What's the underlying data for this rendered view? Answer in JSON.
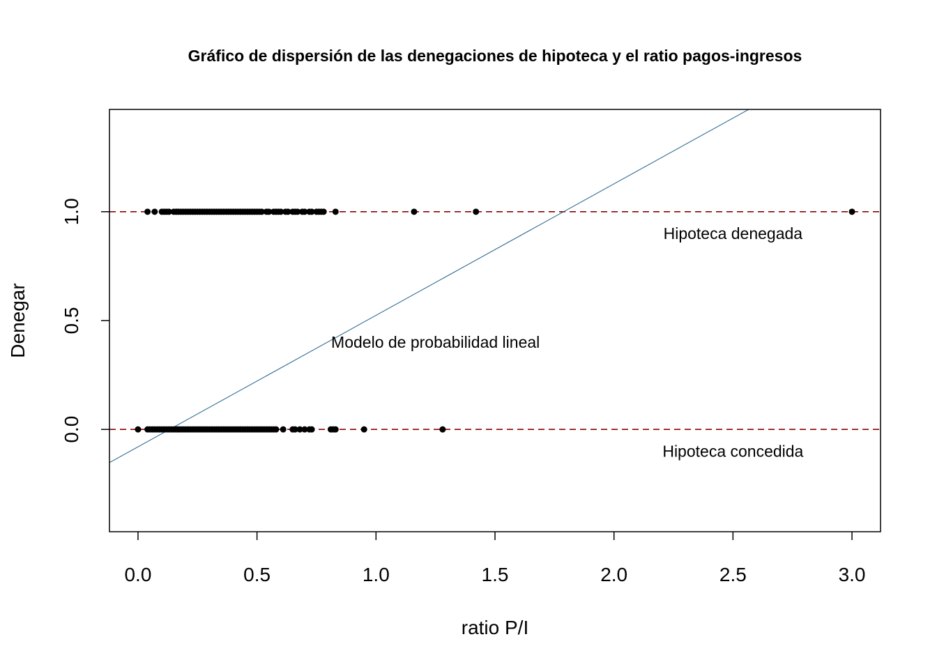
{
  "chart_data": {
    "type": "scatter",
    "title": "Gráfico de dispersión de las denegaciones de hipoteca y el ratio pagos-ingresos",
    "xlabel": "ratio P/I",
    "ylabel": "Denegar",
    "xlim": [
      -0.12,
      3.12
    ],
    "ylim": [
      -0.47,
      1.47
    ],
    "x_ticks": [
      {
        "value": 0.0,
        "label": "0.0"
      },
      {
        "value": 0.5,
        "label": "0.5"
      },
      {
        "value": 1.0,
        "label": "1.0"
      },
      {
        "value": 1.5,
        "label": "1.5"
      },
      {
        "value": 2.0,
        "label": "2.0"
      },
      {
        "value": 2.5,
        "label": "2.5"
      },
      {
        "value": 3.0,
        "label": "3.0"
      }
    ],
    "y_ticks": [
      {
        "value": 0.0,
        "label": "0.0"
      },
      {
        "value": 0.5,
        "label": "0.5"
      },
      {
        "value": 1.0,
        "label": "1.0"
      }
    ],
    "grid": false,
    "series": [
      {
        "y": 1,
        "x": [
          0.04,
          0.07,
          0.1,
          0.11,
          0.12,
          0.13,
          0.15,
          0.16,
          0.17,
          0.18,
          0.19,
          0.2,
          0.21,
          0.22,
          0.23,
          0.24,
          0.25,
          0.26,
          0.27,
          0.28,
          0.29,
          0.3,
          0.31,
          0.32,
          0.33,
          0.34,
          0.35,
          0.36,
          0.37,
          0.38,
          0.39,
          0.4,
          0.41,
          0.42,
          0.43,
          0.44,
          0.45,
          0.46,
          0.47,
          0.48,
          0.49,
          0.5,
          0.51,
          0.52,
          0.54,
          0.55,
          0.57,
          0.58,
          0.59,
          0.6,
          0.62,
          0.63,
          0.65,
          0.66,
          0.67,
          0.69,
          0.7,
          0.72,
          0.73,
          0.75,
          0.76,
          0.77,
          0.78,
          0.83,
          1.16,
          1.42,
          3.0
        ]
      },
      {
        "y": 0,
        "x": [
          0.0,
          0.04,
          0.05,
          0.06,
          0.07,
          0.08,
          0.09,
          0.1,
          0.11,
          0.12,
          0.13,
          0.14,
          0.15,
          0.16,
          0.17,
          0.18,
          0.19,
          0.2,
          0.21,
          0.22,
          0.23,
          0.24,
          0.25,
          0.26,
          0.27,
          0.28,
          0.29,
          0.3,
          0.31,
          0.32,
          0.33,
          0.34,
          0.35,
          0.36,
          0.37,
          0.38,
          0.39,
          0.4,
          0.41,
          0.42,
          0.43,
          0.44,
          0.45,
          0.46,
          0.47,
          0.48,
          0.49,
          0.5,
          0.51,
          0.52,
          0.53,
          0.54,
          0.55,
          0.56,
          0.57,
          0.58,
          0.61,
          0.65,
          0.66,
          0.68,
          0.7,
          0.72,
          0.73,
          0.81,
          0.82,
          0.83,
          0.95,
          1.28
        ]
      }
    ],
    "reference_lines": [
      {
        "y": 1.0,
        "color": "#8B0000",
        "style": "dashed"
      },
      {
        "y": 0.0,
        "color": "#8B0000",
        "style": "dashed"
      }
    ],
    "fit_line": {
      "intercept": -0.08,
      "slope": 0.604,
      "color": "#1f5f8b"
    },
    "annotations": [
      {
        "text": "Hipoteca denegada",
        "x": 2.5,
        "y": 0.9
      },
      {
        "text": "Modelo de probabilidad lineal",
        "x": 1.25,
        "y": 0.4
      },
      {
        "text": "Hipoteca concedida",
        "x": 2.5,
        "y": -0.1
      }
    ],
    "point_color": "#000000"
  }
}
